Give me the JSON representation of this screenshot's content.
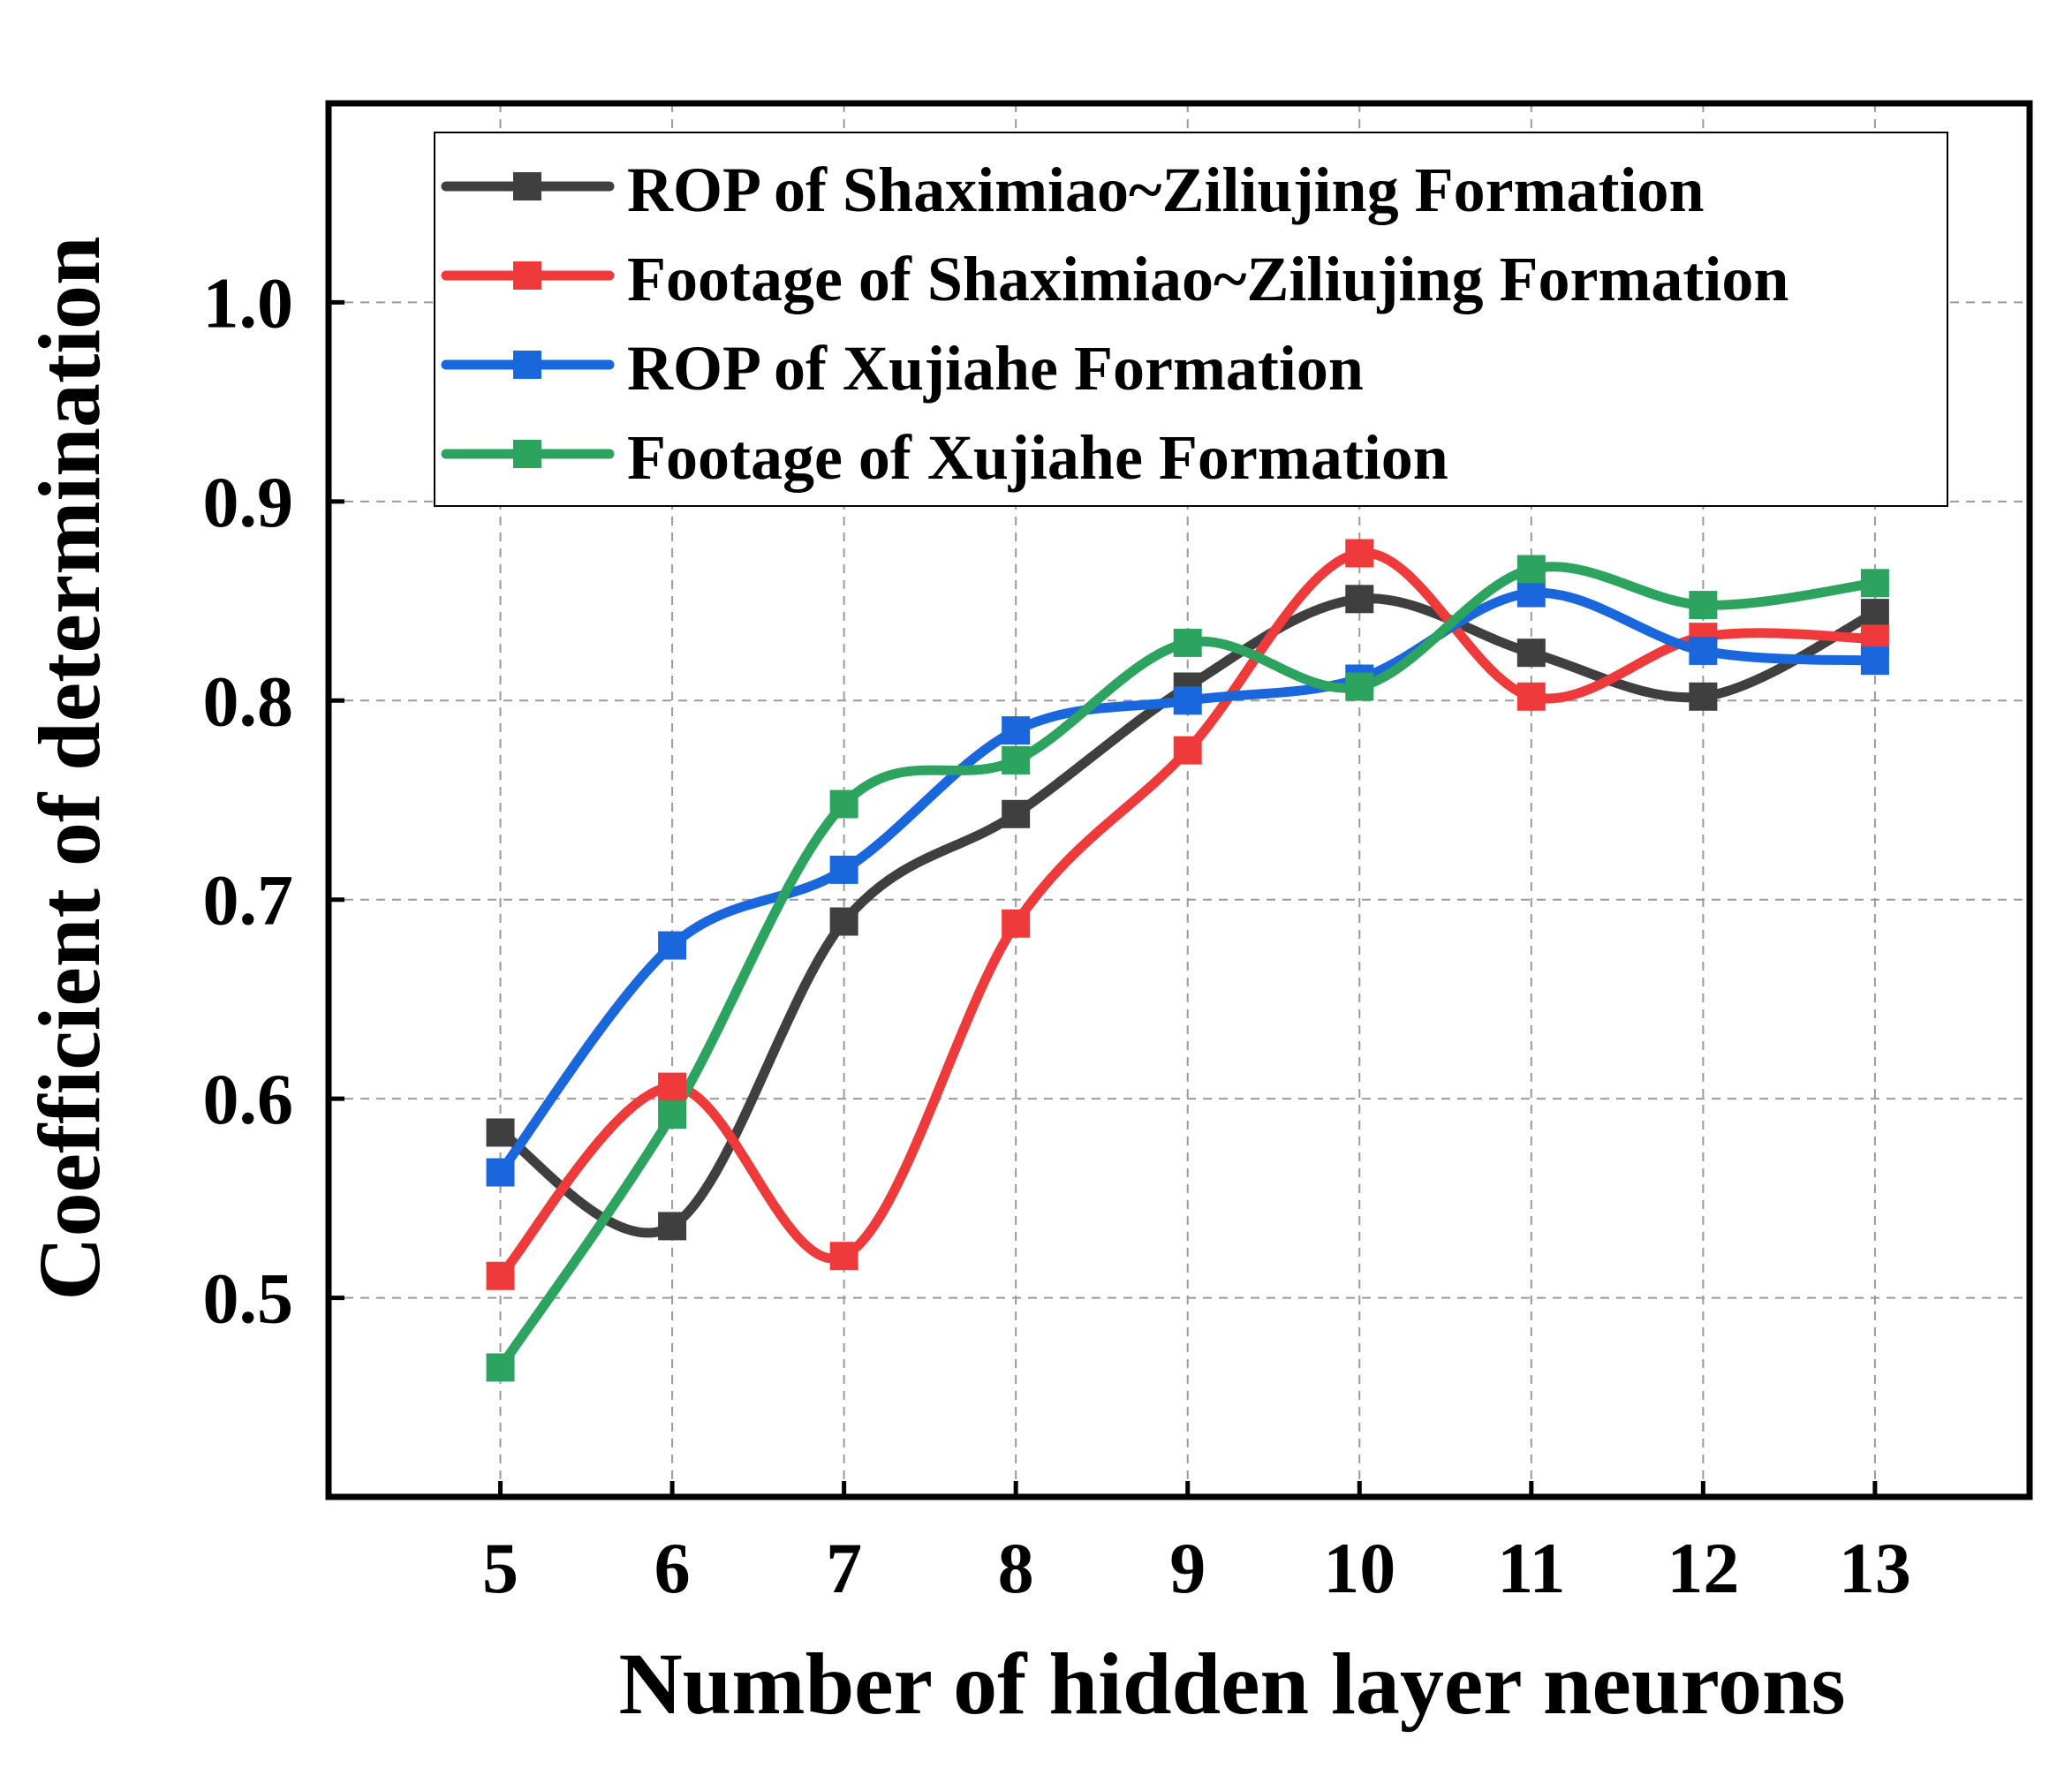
{
  "chart_data": {
    "type": "line",
    "title": "",
    "xlabel": "Number of hidden layer neurons",
    "ylabel": "Coefficient of determination",
    "categories": [
      "5",
      "6",
      "7",
      "8",
      "9",
      "10",
      "11",
      "12",
      "13"
    ],
    "x": [
      5,
      6,
      7,
      8,
      9,
      10,
      11,
      12,
      13
    ],
    "xlim": [
      4.0,
      13.9
    ],
    "ylim": [
      0.4,
      1.1
    ],
    "yticks": [
      0.5,
      0.6,
      0.7,
      0.8,
      0.9,
      1.0
    ],
    "ytick_labels": [
      "0.5",
      "0.6",
      "0.7",
      "0.8",
      "0.9",
      "1.0"
    ],
    "grid": true,
    "legend_position": "top",
    "series": [
      {
        "name": "ROP of Shaximiao~Ziliujing Formation",
        "color": "#3f3f3f",
        "marker": "square",
        "values": [
          0.583,
          0.536,
          0.689,
          0.743,
          0.807,
          0.851,
          0.824,
          0.802,
          0.844
        ]
      },
      {
        "name": "Footage of Shaximiao~Ziliujing Formation",
        "color": "#ee3a3a",
        "marker": "square",
        "values": [
          0.511,
          0.606,
          0.521,
          0.688,
          0.775,
          0.874,
          0.802,
          0.832,
          0.831
        ]
      },
      {
        "name": "ROP of Xujiahe Formation",
        "color": "#1a66dd",
        "marker": "square",
        "values": [
          0.563,
          0.677,
          0.715,
          0.785,
          0.8,
          0.811,
          0.854,
          0.825,
          0.82
        ]
      },
      {
        "name": "Footage of Xujiahe Formation",
        "color": "#2ca35f",
        "marker": "square",
        "values": [
          0.465,
          0.592,
          0.748,
          0.77,
          0.829,
          0.807,
          0.866,
          0.848,
          0.859
        ]
      }
    ]
  }
}
